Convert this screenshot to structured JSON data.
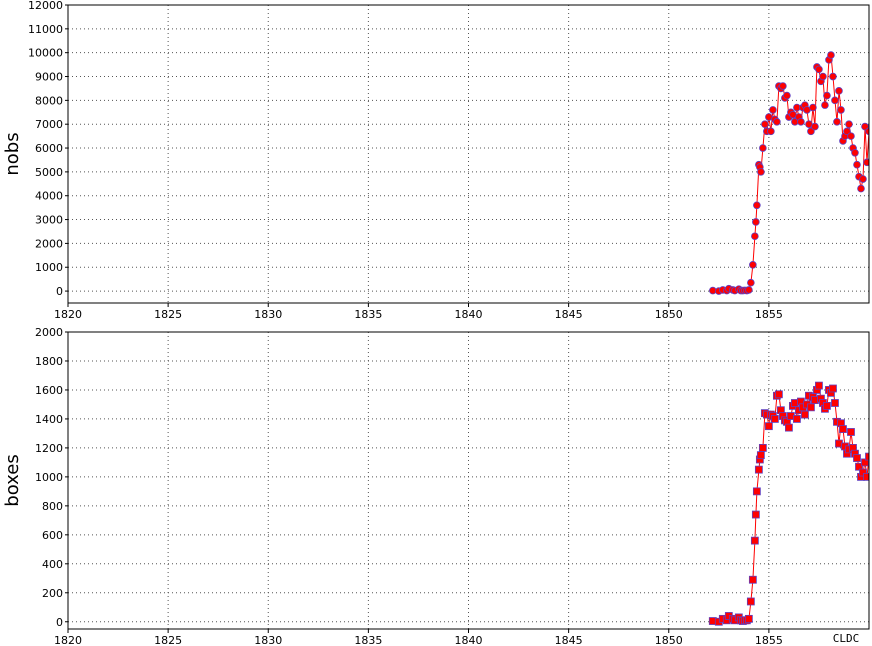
{
  "chart_data": [
    {
      "type": "line",
      "ylabel": "nobs",
      "xlim": [
        1820,
        1860
      ],
      "ylim": [
        -500,
        12000
      ],
      "yticks": [
        0,
        1000,
        2000,
        3000,
        4000,
        5000,
        6000,
        7000,
        8000,
        9000,
        10000,
        11000,
        12000
      ],
      "xticks": [
        1820,
        1825,
        1830,
        1835,
        1840,
        1845,
        1850,
        1855
      ],
      "grid": true,
      "marker": "circle",
      "line_color": "#ff0000",
      "marker_fill": "#ff0000",
      "marker_edge": "#6040c0",
      "series": [
        {
          "x": [
            1852.2,
            1852.5,
            1852.7,
            1852.9,
            1853.0,
            1853.2,
            1853.3,
            1853.5,
            1853.6,
            1853.7,
            1853.8,
            1853.9,
            1854.0,
            1854.1,
            1854.2,
            1854.3,
            1854.35,
            1854.4,
            1854.5,
            1854.55,
            1854.6,
            1854.7,
            1854.8,
            1854.9,
            1855.0,
            1855.1,
            1855.2,
            1855.3,
            1855.4,
            1855.5,
            1855.6,
            1855.7,
            1855.8,
            1855.9,
            1856.0,
            1856.1,
            1856.2,
            1856.3,
            1856.4,
            1856.5,
            1856.6,
            1856.7,
            1856.8,
            1856.9,
            1857.0,
            1857.1,
            1857.2,
            1857.3,
            1857.4,
            1857.5,
            1857.6,
            1857.7,
            1857.8,
            1857.9,
            1858.0,
            1858.1,
            1858.2,
            1858.3,
            1858.4,
            1858.5,
            1858.6,
            1858.7,
            1858.8,
            1858.9,
            1859.0,
            1859.1,
            1859.2,
            1859.3,
            1859.4,
            1859.5,
            1859.6,
            1859.7,
            1859.8,
            1859.9,
            1860.0
          ],
          "y": [
            20,
            0,
            50,
            20,
            100,
            50,
            20,
            80,
            20,
            20,
            30,
            20,
            50,
            350,
            1100,
            2300,
            2900,
            3600,
            5300,
            5200,
            5000,
            6000,
            7000,
            6700,
            7300,
            6700,
            7600,
            7200,
            7100,
            8600,
            8500,
            8600,
            8100,
            8200,
            7300,
            7500,
            7400,
            7100,
            7700,
            7300,
            7100,
            7700,
            7800,
            7600,
            7000,
            6700,
            7700,
            6900,
            9400,
            9300,
            8800,
            9000,
            7800,
            8200,
            9700,
            9900,
            9000,
            8000,
            7100,
            8400,
            7600,
            6300,
            6500,
            6700,
            7000,
            6500,
            6000,
            5800,
            5300,
            4800,
            4300,
            4700,
            6900,
            5400,
            6700
          ]
        }
      ]
    },
    {
      "type": "line",
      "ylabel": "boxes",
      "xlim": [
        1820,
        1860
      ],
      "ylim": [
        -50,
        2000
      ],
      "yticks": [
        0,
        200,
        400,
        600,
        800,
        1000,
        1200,
        1400,
        1600,
        1800,
        2000
      ],
      "xticks": [
        1820,
        1825,
        1830,
        1835,
        1840,
        1845,
        1850,
        1855
      ],
      "grid": true,
      "marker": "square",
      "line_color": "#ff0000",
      "marker_fill": "#ff0000",
      "marker_edge": "#6040c0",
      "series": [
        {
          "x": [
            1852.2,
            1852.5,
            1852.7,
            1852.9,
            1853.0,
            1853.2,
            1853.3,
            1853.5,
            1853.6,
            1853.7,
            1853.8,
            1853.9,
            1854.0,
            1854.1,
            1854.2,
            1854.3,
            1854.35,
            1854.4,
            1854.5,
            1854.55,
            1854.6,
            1854.7,
            1854.8,
            1854.9,
            1855.0,
            1855.1,
            1855.2,
            1855.3,
            1855.4,
            1855.5,
            1855.6,
            1855.7,
            1855.8,
            1855.9,
            1856.0,
            1856.1,
            1856.2,
            1856.3,
            1856.4,
            1856.5,
            1856.6,
            1856.7,
            1856.8,
            1856.9,
            1857.0,
            1857.1,
            1857.2,
            1857.3,
            1857.4,
            1857.5,
            1857.6,
            1857.7,
            1857.8,
            1857.9,
            1858.0,
            1858.1,
            1858.2,
            1858.3,
            1858.4,
            1858.5,
            1858.6,
            1858.7,
            1858.8,
            1858.9,
            1859.0,
            1859.1,
            1859.2,
            1859.3,
            1859.4,
            1859.5,
            1859.6,
            1859.7,
            1859.8,
            1859.9,
            1860.0
          ],
          "y": [
            5,
            0,
            20,
            10,
            40,
            20,
            10,
            30,
            10,
            5,
            10,
            10,
            20,
            140,
            290,
            560,
            740,
            900,
            1050,
            1120,
            1150,
            1200,
            1440,
            1430,
            1350,
            1430,
            1420,
            1400,
            1560,
            1570,
            1460,
            1420,
            1390,
            1380,
            1340,
            1420,
            1490,
            1510,
            1400,
            1460,
            1520,
            1480,
            1430,
            1500,
            1560,
            1480,
            1550,
            1530,
            1600,
            1630,
            1540,
            1510,
            1470,
            1490,
            1600,
            1580,
            1610,
            1510,
            1380,
            1230,
            1370,
            1330,
            1210,
            1160,
            1190,
            1310,
            1200,
            1160,
            1130,
            1070,
            1000,
            1030,
            1100,
            1000,
            1140
          ]
        }
      ]
    }
  ],
  "credit": "CLDC"
}
